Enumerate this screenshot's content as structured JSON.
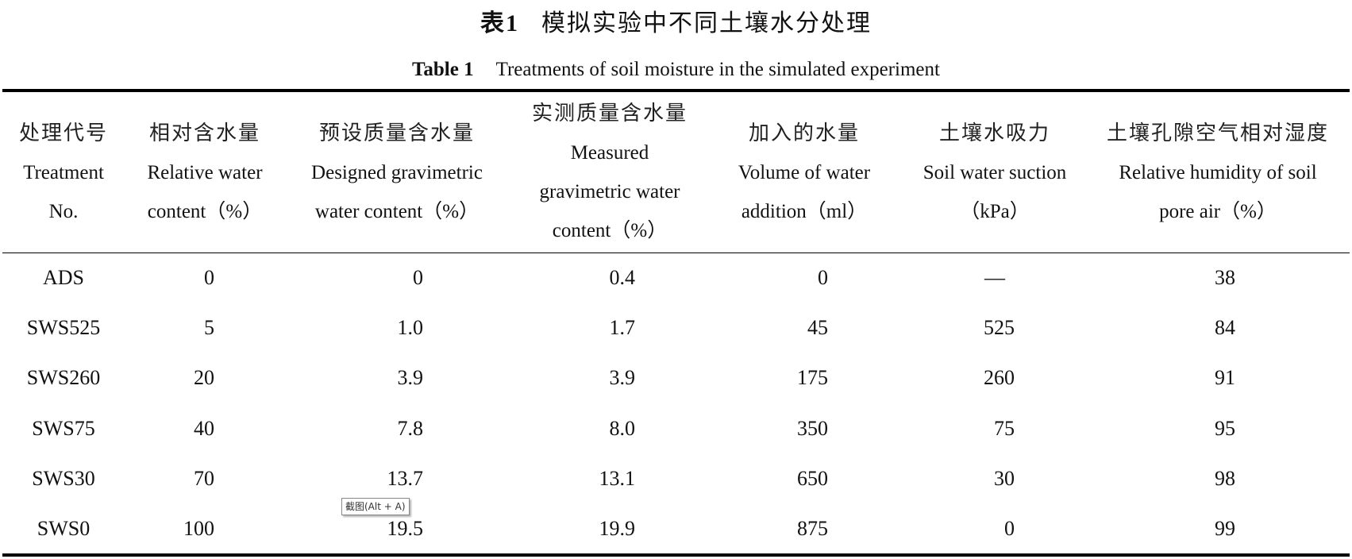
{
  "title_cn": {
    "num": "表1",
    "text": "模拟实验中不同土壤水分处理"
  },
  "title_en": {
    "label": "Table 1",
    "text": "Treatments of soil moisture in the simulated experiment"
  },
  "headers": [
    {
      "cn": "处理代号",
      "en1": "Treatment",
      "en2": "No.",
      "en3": ""
    },
    {
      "cn": "相对含水量",
      "en1": "Relative water",
      "en2": "content（%）",
      "en3": ""
    },
    {
      "cn": "预设质量含水量",
      "en1": "Designed gravimetric",
      "en2": "water content（%）",
      "en3": ""
    },
    {
      "cn": "实测质量含水量",
      "en1": "Measured",
      "en2": "gravimetric water",
      "en3": "content（%）"
    },
    {
      "cn": "加入的水量",
      "en1": "Volume of water",
      "en2": "addition（ml）",
      "en3": ""
    },
    {
      "cn": "土壤水吸力",
      "en1": "Soil water suction",
      "en2": "（kPa）",
      "en3": ""
    },
    {
      "cn": "土壤孔隙空气相对湿度",
      "en1": "Relative humidity of soil",
      "en2": "pore air（%）",
      "en3": ""
    }
  ],
  "rows": [
    [
      "ADS",
      "0",
      "0",
      "0.4",
      "0",
      "—",
      "38"
    ],
    [
      "SWS525",
      "5",
      "1.0",
      "1.7",
      "45",
      "525",
      "84"
    ],
    [
      "SWS260",
      "20",
      "3.9",
      "3.9",
      "175",
      "260",
      "91"
    ],
    [
      "SWS75",
      "40",
      "7.8",
      "8.0",
      "350",
      "75",
      "95"
    ],
    [
      "SWS30",
      "70",
      "13.7",
      "13.1",
      "650",
      "30",
      "98"
    ],
    [
      "SWS0",
      "100",
      "19.5",
      "19.9",
      "875",
      "0",
      "99"
    ]
  ],
  "tooltip": "截图(Alt + A)"
}
